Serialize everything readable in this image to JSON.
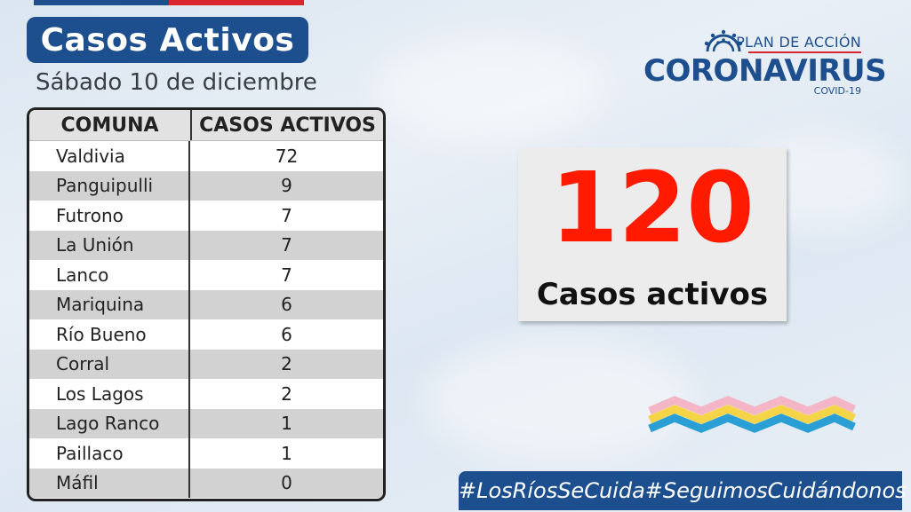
{
  "header": {
    "title": "Casos Activos",
    "date": "Sábado 10 de diciembre"
  },
  "table": {
    "headers": [
      "COMUNA",
      "CASOS ACTIVOS"
    ],
    "rows": [
      {
        "comuna": "Valdivia",
        "casos": "72"
      },
      {
        "comuna": "Panguipulli",
        "casos": "9"
      },
      {
        "comuna": "Futrono",
        "casos": "7"
      },
      {
        "comuna": "La Unión",
        "casos": "7"
      },
      {
        "comuna": "Lanco",
        "casos": "7"
      },
      {
        "comuna": "Mariquina",
        "casos": "6"
      },
      {
        "comuna": "Río Bueno",
        "casos": "6"
      },
      {
        "comuna": "Corral",
        "casos": "2"
      },
      {
        "comuna": "Los Lagos",
        "casos": "2"
      },
      {
        "comuna": "Lago Ranco",
        "casos": "1"
      },
      {
        "comuna": "Paillaco",
        "casos": "1"
      },
      {
        "comuna": "Máfil",
        "casos": "0"
      }
    ]
  },
  "logo": {
    "plan": "PLAN DE ACCIÓN",
    "name": "CORONAVIRUS",
    "sub": "COVID-19",
    "icon": "virus-icon"
  },
  "summary": {
    "total": "120",
    "label": "Casos activos"
  },
  "footer": {
    "hashtags": [
      "#LosRíosSeCuida",
      "#SeguimosCuidándonos"
    ]
  },
  "colors": {
    "brand_blue": "#1d4f8e",
    "accent_red": "#ff1a00",
    "flag_red": "#d8262c"
  }
}
